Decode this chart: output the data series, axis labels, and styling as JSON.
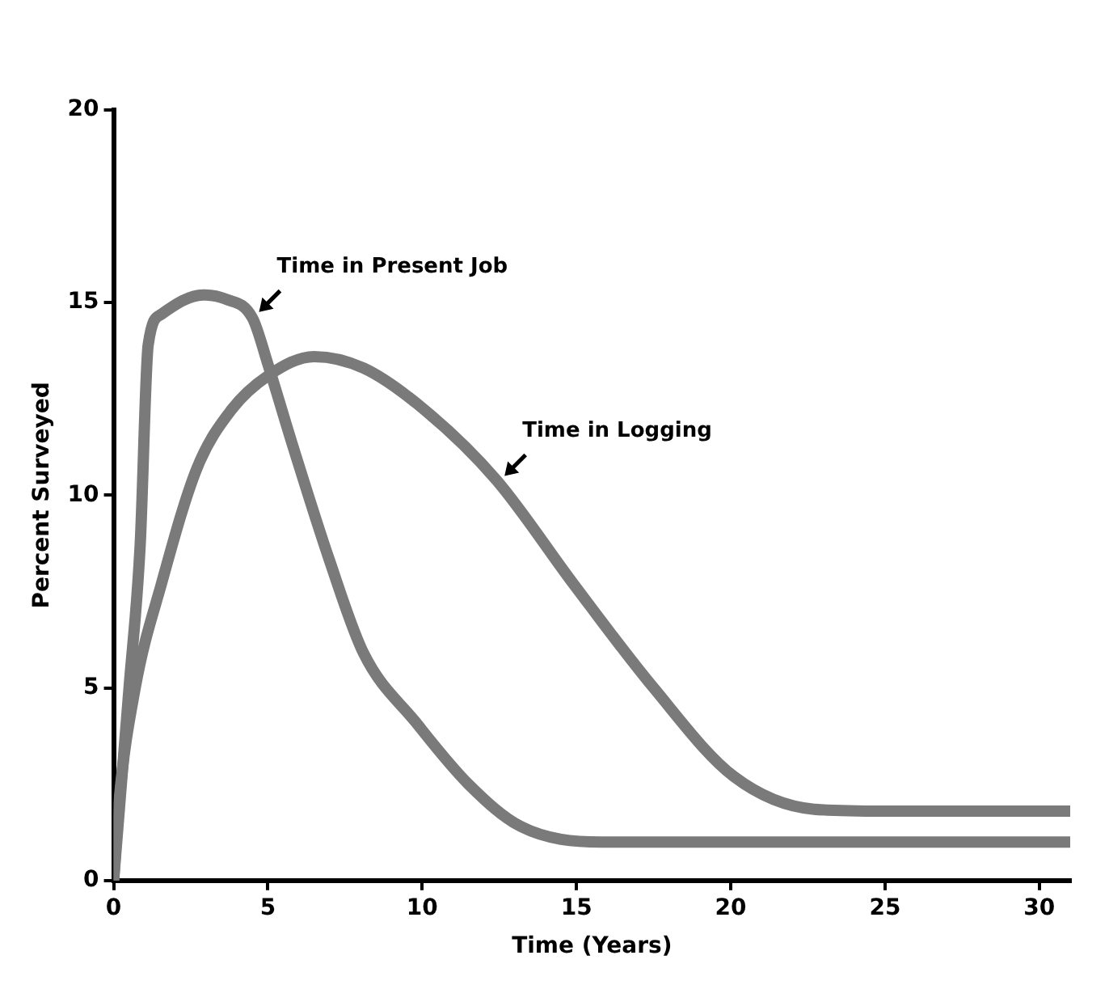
{
  "chart_data": {
    "type": "line",
    "xlabel": "Time (Years)",
    "ylabel": "Percent Surveyed",
    "series": [
      {
        "name": "Time in Present Job",
        "color": "#7a7a7a",
        "x": [
          0,
          0.5,
          0.86,
          1.12,
          1.55,
          2.9,
          3.6,
          4.5,
          5.0,
          5.8,
          7.0,
          8.1,
          9.8,
          11.5,
          13.2,
          15.8,
          20,
          25,
          31
        ],
        "values": [
          0,
          5.0,
          8.7,
          13.9,
          14.7,
          15.2,
          15.1,
          14.6,
          13.4,
          11.3,
          8.3,
          5.9,
          4.1,
          2.5,
          1.4,
          1.0,
          1.0,
          1.0,
          1.0
        ]
      },
      {
        "name": "Time in Logging",
        "color": "#7a7a7a",
        "x": [
          0,
          0.17,
          0.7,
          1.55,
          2.7,
          3.8,
          5.0,
          6.5,
          8.1,
          10.1,
          12.4,
          14.9,
          17.5,
          20.1,
          22.7,
          25,
          31
        ],
        "values": [
          0,
          2.0,
          5.0,
          7.7,
          10.7,
          12.2,
          13.1,
          13.6,
          13.3,
          12.2,
          10.4,
          7.7,
          5.0,
          2.7,
          1.85,
          1.8,
          1.8
        ]
      }
    ],
    "xlim": [
      0,
      31
    ],
    "xticks": [
      0,
      5,
      10,
      15,
      20,
      25,
      30
    ],
    "ylim": [
      0,
      20
    ],
    "yticks": [
      0,
      5,
      10,
      15,
      20
    ],
    "grid": false,
    "legend": false,
    "marker": "none",
    "line_style": "solid"
  }
}
